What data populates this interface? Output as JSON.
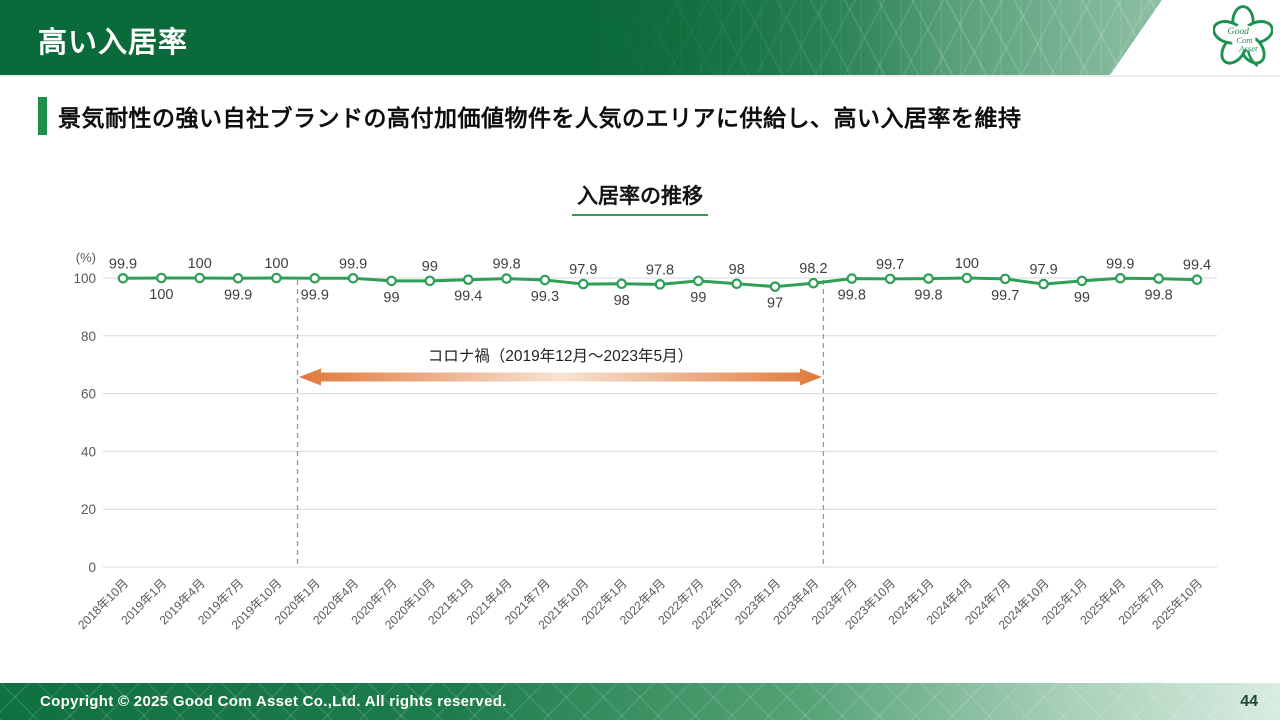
{
  "slide": {
    "header": {
      "title": "高い入居率"
    },
    "logo": {
      "lines": [
        "Good",
        "Com",
        "Asset"
      ]
    },
    "subtitle": "景気耐性の強い自社ブランドの高付加価値物件を人気のエリアに供給し、高い入居率を維持",
    "footer": {
      "copyright": "Copyright © 2025 Good Com Asset Co.,Ltd. All rights reserved.",
      "page_number": "44"
    }
  },
  "chart_data": {
    "type": "line",
    "title": "入居率の推移",
    "unit_label": "(%)",
    "categories": [
      "2018年10月",
      "2019年1月",
      "2019年4月",
      "2019年7月",
      "2019年10月",
      "2020年1月",
      "2020年4月",
      "2020年7月",
      "2020年10月",
      "2021年1月",
      "2021年4月",
      "2021年7月",
      "2021年10月",
      "2022年1月",
      "2022年4月",
      "2022年7月",
      "2022年10月",
      "2023年1月",
      "2023年4月",
      "2023年7月",
      "2023年10月",
      "2024年1月",
      "2024年4月",
      "2024年7月",
      "2024年10月",
      "2025年1月",
      "2025年4月",
      "2025年7月",
      "2025年10月"
    ],
    "values": [
      99.9,
      100,
      100,
      99.9,
      100,
      99.9,
      99.9,
      99,
      99,
      99.4,
      99.8,
      99.3,
      97.9,
      98,
      97.8,
      99,
      98,
      97,
      98.2,
      99.8,
      99.7,
      99.8,
      100,
      99.7,
      97.9,
      99,
      99.9,
      99.8,
      99.4
    ],
    "ylim": [
      0,
      100
    ],
    "yticks": [
      100,
      80,
      60,
      40,
      20,
      0
    ],
    "grid": true,
    "legend": false,
    "annotation": {
      "text": "コロナ禍（2019年12月～2023年5月）",
      "from": {
        "index": 4,
        "t": 0.55
      },
      "to": {
        "index": 18,
        "t": 0.26
      }
    },
    "colors": {
      "line": "#2f9e57",
      "marker_fill": "#ffffff",
      "grid": "#d9d9d9",
      "axis_text": "#595959",
      "label_text": "#3f3f3f",
      "dashed": "#999999",
      "arrow": "#e0773a",
      "arrow_light": "#f8e3d2",
      "annotation_text": "#222222"
    }
  }
}
